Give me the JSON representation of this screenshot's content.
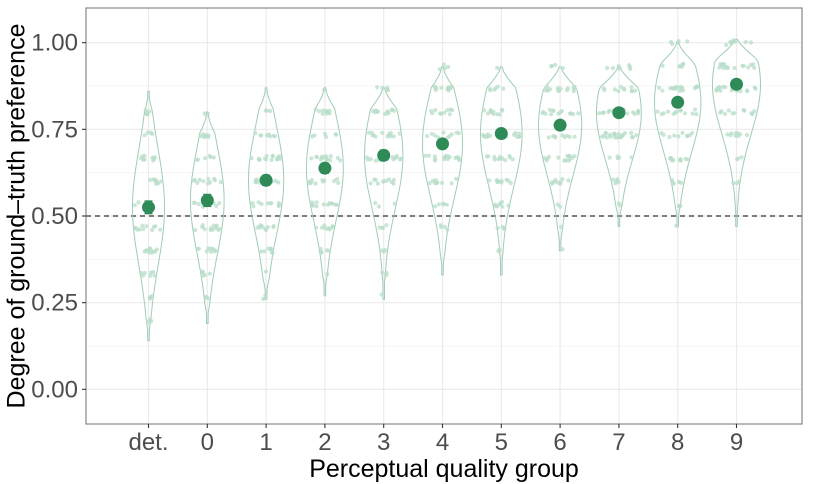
{
  "colors": {
    "accent": "#2e8b57",
    "violin_stroke": "#9fcdb5",
    "point": "#b8ddc8",
    "grid_major": "#ebebeb",
    "grid_minor": "#f5f5f5",
    "panel_border": "#7f7f7f",
    "reference_line": "#333333"
  },
  "chart_data": {
    "type": "violin-jitter-point",
    "xlabel": "Perceptual quality group",
    "ylabel": "Degree of ground–truth preference",
    "categories": [
      "det.",
      "0",
      "1",
      "2",
      "3",
      "4",
      "5",
      "6",
      "7",
      "8",
      "9"
    ],
    "ylim": [
      -0.1,
      1.1
    ],
    "yticks": [
      0.0,
      0.25,
      0.5,
      0.75,
      1.0
    ],
    "ytick_labels": [
      "0.00",
      "0.25",
      "0.50",
      "0.75",
      "1.00"
    ],
    "reference_line": 0.5,
    "means": [
      0.525,
      0.545,
      0.603,
      0.638,
      0.675,
      0.708,
      0.738,
      0.762,
      0.798,
      0.828,
      0.88
    ],
    "ci_halfwidth": [
      0.018,
      0.017,
      0.014,
      0.014,
      0.014,
      0.013,
      0.012,
      0.012,
      0.011,
      0.011,
      0.01
    ],
    "ranges": [
      [
        0.14,
        0.86
      ],
      [
        0.19,
        0.8
      ],
      [
        0.26,
        0.87
      ],
      [
        0.27,
        0.87
      ],
      [
        0.26,
        0.87
      ],
      [
        0.33,
        0.93
      ],
      [
        0.33,
        0.93
      ],
      [
        0.4,
        0.93
      ],
      [
        0.47,
        0.93
      ],
      [
        0.47,
        1.0
      ],
      [
        0.47,
        1.01
      ]
    ],
    "grid": true
  }
}
